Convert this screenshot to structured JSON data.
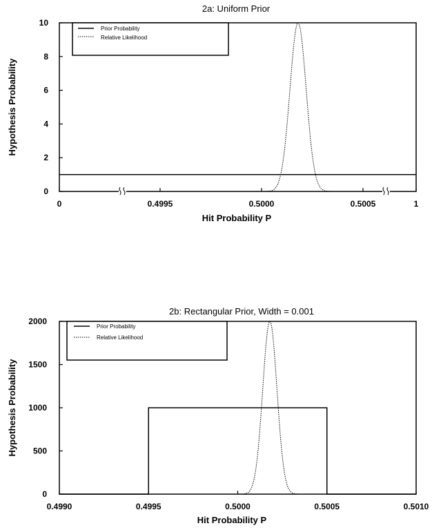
{
  "chart_data": [
    {
      "type": "line",
      "title": "2a: Uniform Prior",
      "xlabel": "Hit Probability P",
      "ylabel": "Hypothesis Probability",
      "ylim": [
        0,
        10
      ],
      "yticks": [
        0,
        2,
        4,
        6,
        8,
        10
      ],
      "xtick_labels": [
        "0",
        "0.4995",
        "0.5000",
        "0.5005",
        "1"
      ],
      "axis_breaks": true,
      "legend": {
        "placement": "top-left",
        "entries": [
          "Prior Probability",
          "Relative Likelihood"
        ]
      },
      "series": [
        {
          "name": "Prior Probability",
          "style": "solid",
          "x": [
            0,
            1
          ],
          "y": [
            1,
            1
          ]
        },
        {
          "name": "Relative Likelihood",
          "style": "dotted",
          "peak_x": 0.50018,
          "peak_y": 10,
          "sigma": 4e-05
        }
      ]
    },
    {
      "type": "line",
      "title": "2b: Rectangular Prior, Width = 0.001",
      "xlabel": "Hit Probability P",
      "ylabel": "Hypothesis Probability",
      "xlim": [
        0.499,
        0.501
      ],
      "ylim": [
        0,
        2000
      ],
      "yticks": [
        0,
        500,
        1000,
        1500,
        2000
      ],
      "xtick_labels": [
        "0.4990",
        "0.4995",
        "0.5000",
        "0.5005",
        "0.5010"
      ],
      "legend": {
        "placement": "top-left",
        "entries": [
          "Prior Probability",
          "Relative Likelihood"
        ]
      },
      "series": [
        {
          "name": "Prior Probability",
          "style": "solid",
          "x": [
            0.499,
            0.4995,
            0.4995,
            0.5005,
            0.5005,
            0.501
          ],
          "y": [
            0,
            0,
            1000,
            1000,
            0,
            0
          ]
        },
        {
          "name": "Relative Likelihood",
          "style": "dotted",
          "peak_x": 0.50018,
          "peak_y": 2000,
          "sigma": 4e-05
        }
      ]
    }
  ]
}
